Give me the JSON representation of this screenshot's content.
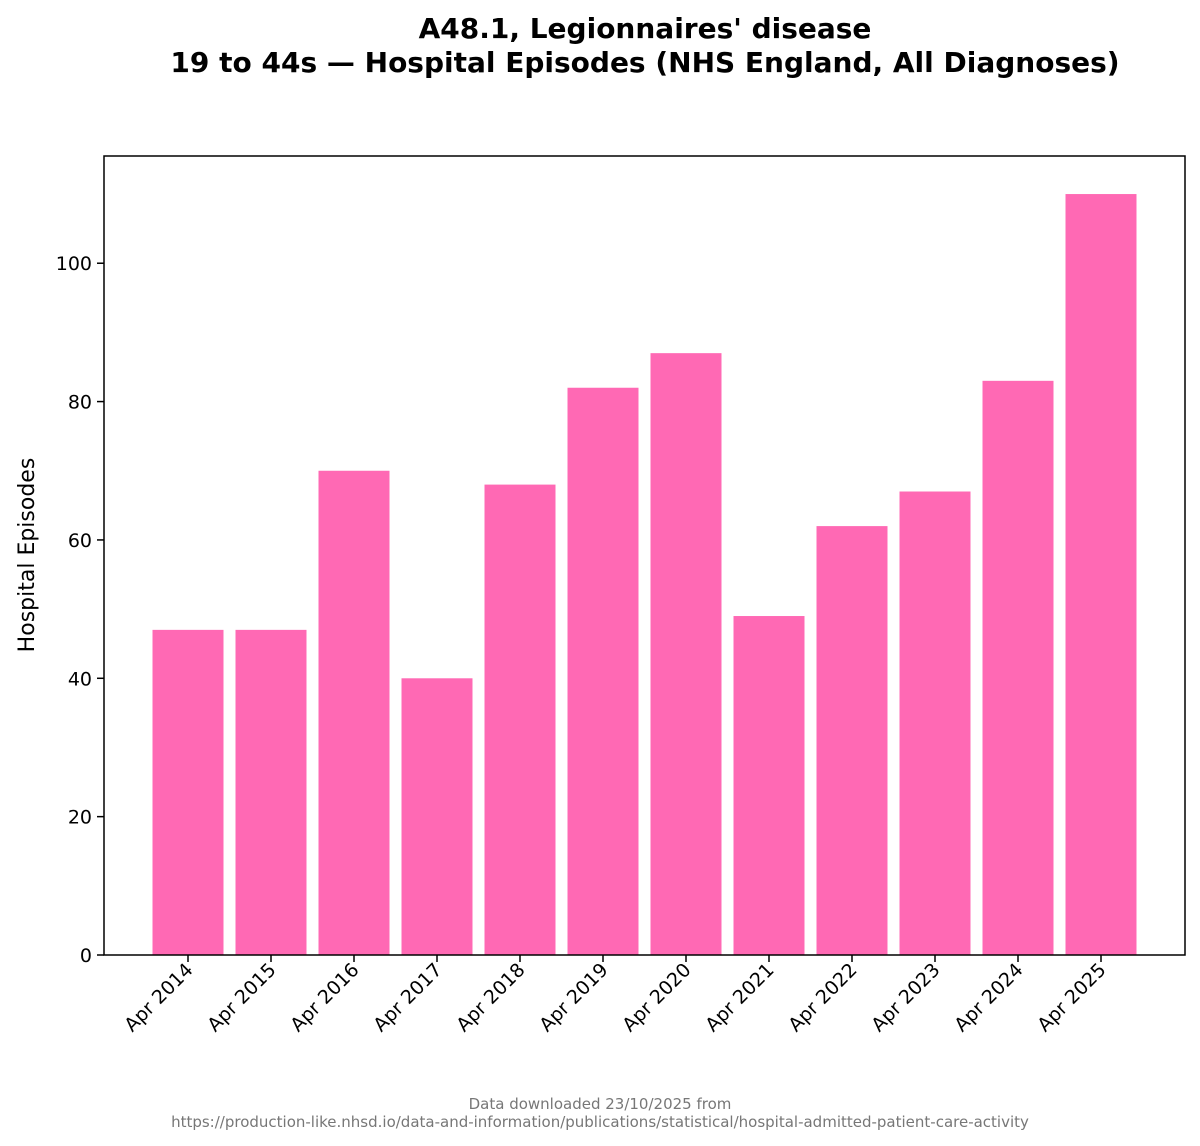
{
  "chart_data": {
    "type": "bar",
    "title": "A48.1, Legionnaires' disease",
    "subtitle": "19 to 44s — Hospital Episodes (NHS England, All Diagnoses)",
    "xlabel": "",
    "ylabel": "Hospital Episodes",
    "categories": [
      "Apr 2014",
      "Apr 2015",
      "Apr 2016",
      "Apr 2017",
      "Apr 2018",
      "Apr 2019",
      "Apr 2020",
      "Apr 2021",
      "Apr 2022",
      "Apr 2023",
      "Apr 2024",
      "Apr 2025"
    ],
    "values": [
      47,
      47,
      70,
      40,
      68,
      82,
      87,
      49,
      62,
      67,
      83,
      110
    ],
    "ylim": [
      0,
      115.5
    ],
    "yticks": [
      0,
      20,
      40,
      60,
      80,
      100
    ],
    "grid": false,
    "bar_color": "#ff69b4"
  },
  "footer": {
    "line1": "Data downloaded 23/10/2025 from",
    "line2": "https://production-like.nhsd.io/data-and-information/publications/statistical/hospital-admitted-patient-care-activity"
  }
}
